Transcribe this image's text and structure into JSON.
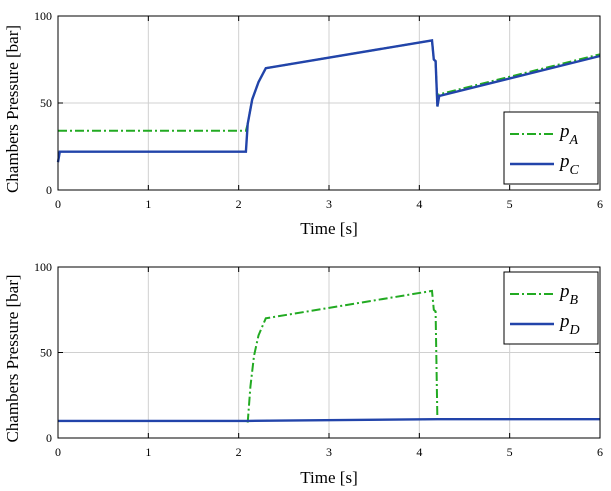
{
  "chart_data": [
    {
      "type": "line",
      "xlabel": "Time [s]",
      "ylabel": "Chambers Pressure [bar]",
      "xlim": [
        0,
        6
      ],
      "ylim": [
        0,
        100
      ],
      "xticks": [
        "0",
        "1",
        "2",
        "3",
        "4",
        "5",
        "6"
      ],
      "yticks": [
        "0",
        "50",
        "100"
      ],
      "grid": true,
      "legend": {
        "placement": "bottom-right"
      },
      "series": [
        {
          "name": "p",
          "subscript": "A",
          "color": "#22aa22",
          "style": "dash-dot",
          "x": [
            0,
            2.08,
            2.1,
            2.15,
            2.22,
            2.3,
            4.14,
            4.16,
            4.18,
            4.2,
            4.22,
            6
          ],
          "y": [
            34,
            34,
            38,
            52,
            62,
            70,
            86,
            75,
            74,
            48,
            55,
            78
          ]
        },
        {
          "name": "p",
          "subscript": "C",
          "color": "#2244aa",
          "style": "solid",
          "x": [
            0,
            0.02,
            2.08,
            2.1,
            2.15,
            2.22,
            2.3,
            4.14,
            4.16,
            4.18,
            4.2,
            4.22,
            6
          ],
          "y": [
            16,
            22,
            22,
            38,
            52,
            62,
            70,
            86,
            75,
            74,
            48,
            54,
            77
          ]
        }
      ]
    },
    {
      "type": "line",
      "xlabel": "Time [s]",
      "ylabel": "Chambers Pressure [bar]",
      "xlim": [
        0,
        6
      ],
      "ylim": [
        0,
        100
      ],
      "xticks": [
        "0",
        "1",
        "2",
        "3",
        "4",
        "5",
        "6"
      ],
      "yticks": [
        "0",
        "50",
        "100"
      ],
      "grid": true,
      "legend": {
        "placement": "top-right"
      },
      "series": [
        {
          "name": "p",
          "subscript": "B",
          "color": "#22aa22",
          "style": "dash-dot",
          "x": [
            2.1,
            2.13,
            2.17,
            2.22,
            2.3,
            4.14,
            4.16,
            4.18,
            4.2
          ],
          "y": [
            9,
            30,
            48,
            60,
            70,
            86,
            75,
            74,
            10
          ]
        },
        {
          "name": "p",
          "subscript": "D",
          "color": "#2244aa",
          "style": "solid",
          "x": [
            0,
            2.1,
            4.2,
            6
          ],
          "y": [
            10,
            10,
            11,
            11
          ]
        }
      ]
    }
  ]
}
